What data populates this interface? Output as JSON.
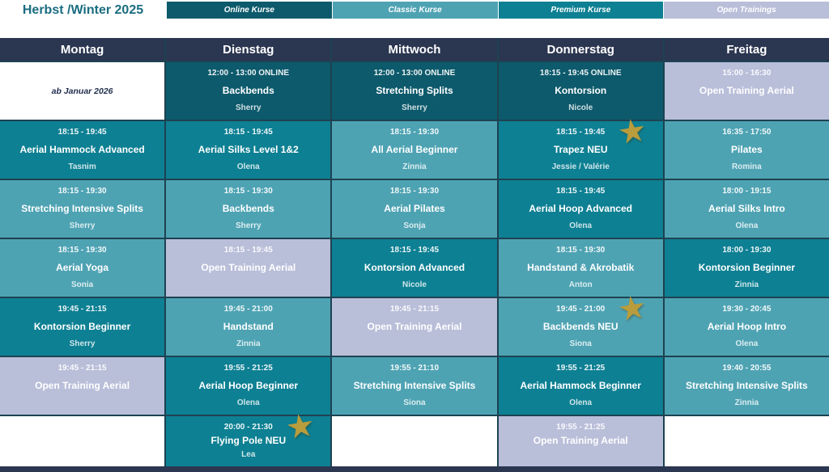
{
  "colors": {
    "online": "#0d5a6c",
    "classic": "#4ea3b3",
    "premium": "#0e8093",
    "open": "#b9bed9",
    "navy": "#2b3650",
    "grid": "#1d4252",
    "star": "#b99c3c",
    "title_text": "#1b6d81",
    "note_text": "#1e2b4a"
  },
  "header": {
    "title": "Herbst /Winter 2025",
    "legend": [
      {
        "label": "Online Kurse",
        "type": "online"
      },
      {
        "label": "Classic Kurse",
        "type": "classic"
      },
      {
        "label": "Premium Kurse",
        "type": "premium"
      },
      {
        "label": "Open Trainings",
        "type": "open"
      }
    ]
  },
  "days": [
    "Montag",
    "Dienstag",
    "Mittwoch",
    "Donnerstag",
    "Freitag"
  ],
  "icons": {
    "new_course_star": "★"
  },
  "schedule": {
    "rows": [
      {
        "cells": [
          {
            "type": "note",
            "title": "ab Januar 2026"
          },
          {
            "type": "online",
            "time": "12:00 - 13:00 ONLINE",
            "title": "Backbends",
            "teacher": "Sherry"
          },
          {
            "type": "online",
            "time": "12:00 - 13:00 ONLINE",
            "title": "Stretching Splits",
            "teacher": "Sherry"
          },
          {
            "type": "online",
            "time": "18:15 - 19:45 ONLINE",
            "title": "Kontorsion",
            "teacher": "Nicole"
          },
          {
            "type": "open",
            "time": "15:00 - 16:30",
            "title": "Open Training Aerial",
            "teacher": ""
          }
        ]
      },
      {
        "cells": [
          {
            "type": "premium",
            "time": "18:15 - 19:45",
            "title": "Aerial Hammock Advanced",
            "teacher": "Tasnim"
          },
          {
            "type": "premium",
            "time": "18:15 - 19:45",
            "title": "Aerial Silks Level 1&2",
            "teacher": "Olena"
          },
          {
            "type": "classic",
            "time": "18:15 - 19:30",
            "title": "All Aerial Beginner",
            "teacher": "Zinnia"
          },
          {
            "type": "premium",
            "time": "18:15 - 19:45",
            "title": "Trapez NEU",
            "teacher": "Jessie / Valérie",
            "star": true
          },
          {
            "type": "classic",
            "time": "16:35 - 17:50",
            "title": "Pilates",
            "teacher": "Romina"
          }
        ]
      },
      {
        "cells": [
          {
            "type": "classic",
            "time": "18:15 - 19:30",
            "title": "Stretching Intensive Splits",
            "teacher": "Sherry"
          },
          {
            "type": "classic",
            "time": "18:15 - 19:30",
            "title": "Backbends",
            "teacher": "Sherry"
          },
          {
            "type": "classic",
            "time": "18:15 - 19:30",
            "title": "Aerial Pilates",
            "teacher": "Sonja"
          },
          {
            "type": "premium",
            "time": "18:15 - 19:45",
            "title": "Aerial Hoop Advanced",
            "teacher": "Olena"
          },
          {
            "type": "classic",
            "time": "18:00 - 19:15",
            "title": "Aerial Silks Intro",
            "teacher": "Olena"
          }
        ]
      },
      {
        "cells": [
          {
            "type": "classic",
            "time": "18:15 - 19:30",
            "title": "Aerial Yoga",
            "teacher": "Sonia"
          },
          {
            "type": "open",
            "time": "18:15 - 19:45",
            "title": "Open Training Aerial",
            "teacher": ""
          },
          {
            "type": "premium",
            "time": "18:15 - 19:45",
            "title": "Kontorsion Advanced",
            "teacher": "Nicole"
          },
          {
            "type": "classic",
            "time": "18:15 - 19:30",
            "title": "Handstand & Akrobatik",
            "teacher": "Anton"
          },
          {
            "type": "premium",
            "time": "18:00 - 19:30",
            "title": "Kontorsion Beginner",
            "teacher": "Zinnia"
          }
        ]
      },
      {
        "cells": [
          {
            "type": "premium",
            "time": "19:45 - 21:15",
            "title": "Kontorsion Beginner",
            "teacher": "Sherry"
          },
          {
            "type": "classic",
            "time": "19:45 - 21:00",
            "title": "Handstand",
            "teacher": "Zinnia"
          },
          {
            "type": "open",
            "time": "19:45 - 21:15",
            "title": "Open Training Aerial",
            "teacher": ""
          },
          {
            "type": "classic",
            "time": "19:45 - 21:00",
            "title": "Backbends NEU",
            "teacher": "Siona",
            "star": true
          },
          {
            "type": "classic",
            "time": "19:30 - 20:45",
            "title": "Aerial Hoop Intro",
            "teacher": "Olena"
          }
        ]
      },
      {
        "cells": [
          {
            "type": "open",
            "time": "19:45 - 21:15",
            "title": "Open Training Aerial",
            "teacher": ""
          },
          {
            "type": "premium",
            "time": "19:55 - 21:25",
            "title": "Aerial Hoop Beginner",
            "teacher": "Olena"
          },
          {
            "type": "classic",
            "time": "19:55 - 21:10",
            "title": "Stretching Intensive Splits",
            "teacher": "Siona"
          },
          {
            "type": "premium",
            "time": "19:55 - 21:25",
            "title": "Aerial Hammock Beginner",
            "teacher": "Olena"
          },
          {
            "type": "classic",
            "time": "19:40 - 20:55",
            "title": "Stretching Intensive Splits",
            "teacher": "Zinnia"
          }
        ]
      },
      {
        "cells": [
          {
            "type": "empty"
          },
          {
            "type": "premium",
            "time": "20:00 - 21:30",
            "title": "Flying Pole NEU",
            "teacher": "Lea",
            "star": true
          },
          {
            "type": "empty"
          },
          {
            "type": "open",
            "time": "19:55 - 21:25",
            "title": "Open Training Aerial",
            "teacher": ""
          },
          {
            "type": "empty"
          }
        ]
      }
    ]
  }
}
